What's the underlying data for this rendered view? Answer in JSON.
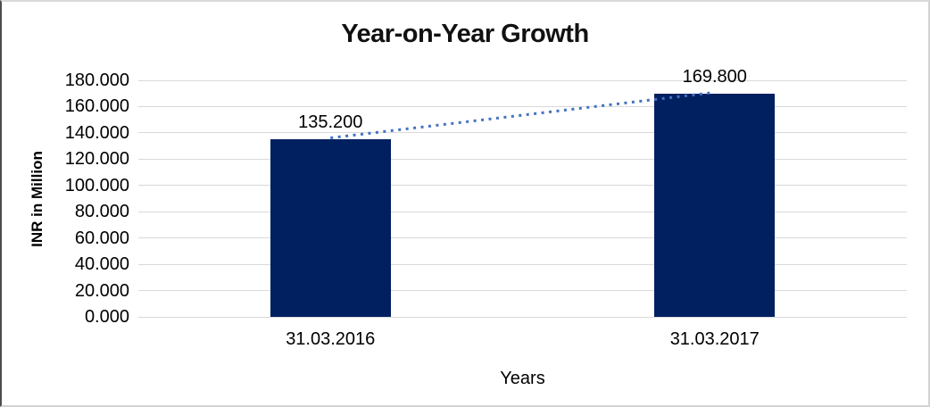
{
  "chart_data": {
    "type": "bar",
    "title": "Year-on-Year Growth",
    "xlabel": "Years",
    "ylabel": "INR in Million",
    "categories": [
      "31.03.2016",
      "31.03.2017"
    ],
    "values": [
      135.2,
      169.8
    ],
    "data_labels": [
      "135.200",
      "169.800"
    ],
    "ylim": [
      0,
      180
    ],
    "ytick_step": 20,
    "yticks": [
      "0.000",
      "20.000",
      "40.000",
      "60.000",
      "80.000",
      "100.000",
      "120.000",
      "140.000",
      "160.000",
      "180.000"
    ],
    "grid": true,
    "legend": false,
    "bar_color": "#002060",
    "gridline_color": "#d9d9d9",
    "trendline": {
      "style": "dotted",
      "color": "#4472c4",
      "from_category_index": 0,
      "to_category_index": 1
    }
  }
}
